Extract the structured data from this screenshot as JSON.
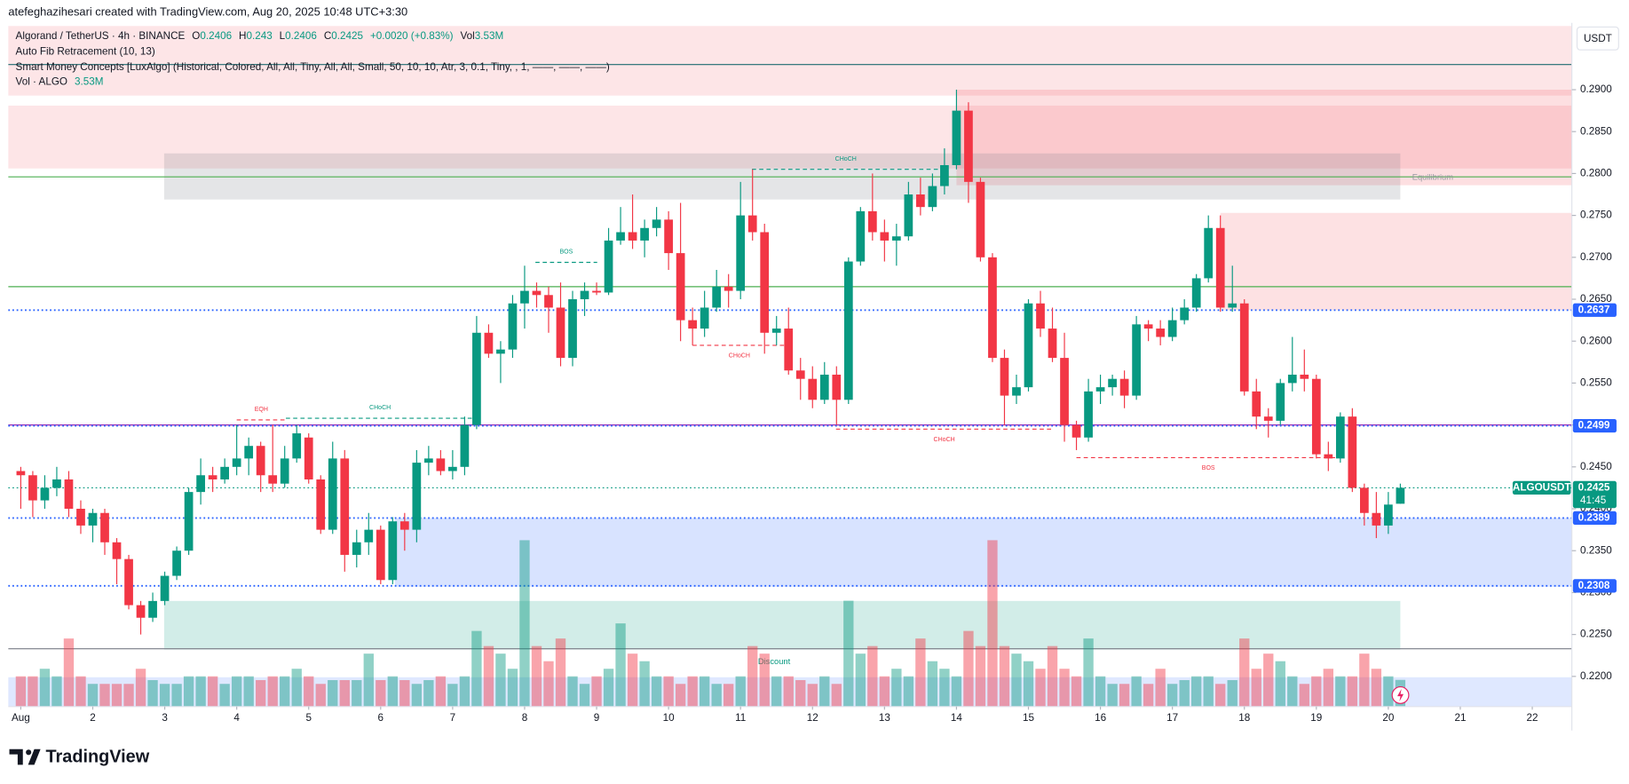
{
  "chart_data": {
    "type": "candlestick",
    "header": "atefeghazihesari created with TradingView.com, Aug 20, 2025 10:48 UTC+3:30",
    "title": "Algorand / TetherUS · 4h · BINANCE",
    "ohlc_keys": [
      "O",
      "H",
      "L",
      "C"
    ],
    "change": "+0.0020 (+0.83%)",
    "volume_key": "Vol",
    "indicators": [
      "Auto Fib Retracement (10, 13)",
      "Smart Money Concepts [LuxAlgo] (Historical, Colored, All, All, Tiny, All, All, Small, 50, 10, 10, Atr, 3, 0.1, Tiny, , 1, ——, ——, ——)"
    ],
    "volume_title": "Vol · ALGO",
    "volume_label": "3.53M",
    "currency": "USDT",
    "brand": "TradingView",
    "up_color": "#089981",
    "down_color": "#f23645",
    "open": [
      0.2445,
      0.244,
      0.241,
      0.2425,
      0.2435,
      0.24,
      0.238,
      0.2395,
      0.236,
      0.234,
      0.2285,
      0.227,
      0.229,
      0.232,
      0.235,
      0.242,
      0.244,
      0.2435,
      0.245,
      0.246,
      0.2475,
      0.244,
      0.243,
      0.246,
      0.2485,
      0.2435,
      0.2375,
      0.246,
      0.2345,
      0.236,
      0.2375,
      0.2315,
      0.2385,
      0.2375,
      0.2455,
      0.246,
      0.2445,
      0.245,
      0.25,
      0.261,
      0.2585,
      0.259,
      0.2645,
      0.266,
      0.2655,
      0.264,
      0.258,
      0.265,
      0.266,
      0.2658,
      0.272,
      0.273,
      0.272,
      0.2735,
      0.2745,
      0.2705,
      0.2625,
      0.2615,
      0.264,
      0.2665,
      0.266,
      0.275,
      0.273,
      0.261,
      0.2615,
      0.2565,
      0.2555,
      0.253,
      0.256,
      0.253,
      0.2695,
      0.2755,
      0.273,
      0.272,
      0.2725,
      0.2775,
      0.276,
      0.2785,
      0.281,
      0.2875,
      0.279,
      0.27,
      0.258,
      0.2535,
      0.2545,
      0.2645,
      0.2615,
      0.258,
      0.25,
      0.2485,
      0.254,
      0.2545,
      0.2555,
      0.2535,
      0.262,
      0.2615,
      0.2605,
      0.2625,
      0.264,
      0.2675,
      0.2735,
      0.264,
      0.2645,
      0.254,
      0.251,
      0.2505,
      0.255,
      0.256,
      0.2555,
      0.2465,
      0.246,
      0.251,
      0.2425,
      0.2395,
      0.238,
      0.2406
    ],
    "high": [
      0.245,
      0.2445,
      0.244,
      0.245,
      0.2445,
      0.241,
      0.24,
      0.24,
      0.2365,
      0.2345,
      0.229,
      0.23,
      0.2325,
      0.2355,
      0.2425,
      0.246,
      0.245,
      0.246,
      0.25,
      0.2485,
      0.248,
      0.25,
      0.2475,
      0.25,
      0.249,
      0.244,
      0.248,
      0.247,
      0.2375,
      0.2395,
      0.238,
      0.239,
      0.2395,
      0.247,
      0.2475,
      0.247,
      0.247,
      0.251,
      0.263,
      0.262,
      0.26,
      0.2655,
      0.269,
      0.267,
      0.2665,
      0.267,
      0.266,
      0.267,
      0.267,
      0.2735,
      0.276,
      0.2775,
      0.2745,
      0.276,
      0.2755,
      0.2765,
      0.264,
      0.266,
      0.2685,
      0.268,
      0.279,
      0.2805,
      0.274,
      0.263,
      0.264,
      0.258,
      0.257,
      0.2575,
      0.257,
      0.27,
      0.276,
      0.28,
      0.2745,
      0.274,
      0.279,
      0.2795,
      0.28,
      0.283,
      0.29,
      0.2885,
      0.2795,
      0.2705,
      0.259,
      0.256,
      0.265,
      0.266,
      0.264,
      0.261,
      0.2505,
      0.2555,
      0.256,
      0.256,
      0.2565,
      0.263,
      0.2625,
      0.2625,
      0.264,
      0.265,
      0.268,
      0.275,
      0.275,
      0.269,
      0.265,
      0.2555,
      0.252,
      0.2555,
      0.2605,
      0.259,
      0.256,
      0.248,
      0.2515,
      0.252,
      0.243,
      0.242,
      0.242,
      0.243
    ],
    "low": [
      0.24,
      0.239,
      0.24,
      0.2415,
      0.239,
      0.237,
      0.236,
      0.2345,
      0.231,
      0.228,
      0.225,
      0.2265,
      0.2285,
      0.2315,
      0.2345,
      0.2405,
      0.242,
      0.243,
      0.244,
      0.244,
      0.242,
      0.242,
      0.2425,
      0.2455,
      0.243,
      0.237,
      0.237,
      0.2325,
      0.233,
      0.2345,
      0.231,
      0.231,
      0.235,
      0.236,
      0.244,
      0.244,
      0.2435,
      0.244,
      0.2495,
      0.258,
      0.255,
      0.258,
      0.2615,
      0.264,
      0.261,
      0.257,
      0.257,
      0.263,
      0.2655,
      0.2655,
      0.2715,
      0.271,
      0.27,
      0.2725,
      0.2685,
      0.26,
      0.2595,
      0.2605,
      0.2635,
      0.264,
      0.265,
      0.272,
      0.2585,
      0.2595,
      0.256,
      0.253,
      0.252,
      0.2525,
      0.25,
      0.2525,
      0.269,
      0.272,
      0.2695,
      0.269,
      0.272,
      0.275,
      0.2755,
      0.2775,
      0.2805,
      0.2765,
      0.2695,
      0.2575,
      0.25,
      0.2525,
      0.254,
      0.2605,
      0.2575,
      0.248,
      0.247,
      0.248,
      0.2525,
      0.2535,
      0.252,
      0.253,
      0.26,
      0.2595,
      0.26,
      0.262,
      0.2635,
      0.267,
      0.2635,
      0.2635,
      0.2535,
      0.2495,
      0.2485,
      0.25,
      0.254,
      0.254,
      0.246,
      0.2445,
      0.2455,
      0.242,
      0.238,
      0.2365,
      0.237,
      0.2406
    ],
    "close": [
      0.244,
      0.241,
      0.2425,
      0.2435,
      0.24,
      0.238,
      0.2395,
      0.236,
      0.234,
      0.2285,
      0.227,
      0.229,
      0.232,
      0.235,
      0.242,
      0.244,
      0.2435,
      0.245,
      0.246,
      0.2475,
      0.244,
      0.243,
      0.246,
      0.249,
      0.2435,
      0.2375,
      0.246,
      0.2345,
      0.236,
      0.2375,
      0.2315,
      0.2385,
      0.2375,
      0.2455,
      0.246,
      0.2445,
      0.245,
      0.25,
      0.261,
      0.2585,
      0.259,
      0.2645,
      0.266,
      0.2655,
      0.264,
      0.258,
      0.265,
      0.266,
      0.2658,
      0.272,
      0.273,
      0.272,
      0.2735,
      0.2745,
      0.2705,
      0.2625,
      0.2615,
      0.264,
      0.2665,
      0.266,
      0.275,
      0.273,
      0.261,
      0.2615,
      0.2565,
      0.2555,
      0.253,
      0.256,
      0.253,
      0.2695,
      0.2755,
      0.273,
      0.272,
      0.2725,
      0.2775,
      0.276,
      0.2785,
      0.281,
      0.2875,
      0.279,
      0.27,
      0.258,
      0.2535,
      0.2545,
      0.2645,
      0.2615,
      0.258,
      0.25,
      0.2485,
      0.254,
      0.2545,
      0.2555,
      0.2535,
      0.262,
      0.2615,
      0.2605,
      0.2625,
      0.264,
      0.2675,
      0.2735,
      0.264,
      0.2645,
      0.254,
      0.251,
      0.2505,
      0.255,
      0.256,
      0.2555,
      0.2465,
      0.246,
      0.251,
      0.2425,
      0.2395,
      0.238,
      0.2405,
      0.2425
    ],
    "volume": [
      4,
      4,
      5,
      4,
      9,
      4,
      3,
      3,
      3,
      3,
      5,
      3.5,
      3,
      3,
      4,
      4,
      4,
      3,
      4,
      4,
      3.5,
      4,
      4,
      5,
      4,
      3,
      3.5,
      3.5,
      3.5,
      7,
      3.5,
      4,
      3.5,
      3,
      3.5,
      4,
      3,
      4,
      10,
      8,
      7,
      5,
      22,
      8,
      6,
      9,
      4,
      3,
      4,
      5,
      11,
      7,
      6,
      4,
      4,
      3,
      4,
      4,
      3,
      3,
      4,
      8,
      7,
      4,
      4,
      3.5,
      3,
      4,
      3,
      14,
      7,
      8,
      4,
      5,
      4,
      9,
      6,
      5,
      4,
      10,
      8,
      22,
      8,
      7,
      6,
      5,
      8,
      5,
      4,
      9,
      4,
      3,
      3,
      4,
      3,
      5,
      3,
      3.5,
      4,
      4,
      3,
      3.5,
      9,
      5,
      7,
      6,
      4,
      3,
      4,
      5,
      4,
      4,
      7,
      5,
      4,
      3.53
    ],
    "volume_ylim": [
      0,
      90
    ],
    "xlim": [
      -1.04,
      129.3
    ],
    "xticks": [
      {
        "value": 0,
        "label": "Aug"
      },
      {
        "value": 6,
        "label": "2"
      },
      {
        "value": 12,
        "label": "3"
      },
      {
        "value": 18,
        "label": "4"
      },
      {
        "value": 24,
        "label": "5"
      },
      {
        "value": 30,
        "label": "6"
      },
      {
        "value": 36,
        "label": "7"
      },
      {
        "value": 42,
        "label": "8"
      },
      {
        "value": 48,
        "label": "9"
      },
      {
        "value": 54,
        "label": "10"
      },
      {
        "value": 60,
        "label": "11"
      },
      {
        "value": 66,
        "label": "12"
      },
      {
        "value": 72,
        "label": "13"
      },
      {
        "value": 78,
        "label": "14"
      },
      {
        "value": 84,
        "label": "15"
      },
      {
        "value": 90,
        "label": "16"
      },
      {
        "value": 96,
        "label": "17"
      },
      {
        "value": 102,
        "label": "18"
      },
      {
        "value": 108,
        "label": "19"
      },
      {
        "value": 114,
        "label": "20"
      },
      {
        "value": 120,
        "label": "21"
      },
      {
        "value": 126,
        "label": "22"
      }
    ],
    "ylim": [
      0.2164,
      0.2976
    ],
    "yticks": [
      {
        "value": 0.29,
        "label": "0.2900"
      },
      {
        "value": 0.285,
        "label": "0.2850"
      },
      {
        "value": 0.28,
        "label": "0.2800"
      },
      {
        "value": 0.275,
        "label": "0.2750"
      },
      {
        "value": 0.27,
        "label": "0.2700"
      },
      {
        "value": 0.265,
        "label": "0.2650"
      },
      {
        "value": 0.26,
        "label": "0.2600"
      },
      {
        "value": 0.255,
        "label": "0.2550"
      },
      {
        "value": 0.25,
        "label": "0.2500"
      },
      {
        "value": 0.245,
        "label": "0.2450"
      },
      {
        "value": 0.24,
        "label": "0.2400"
      },
      {
        "value": 0.235,
        "label": "0.2350"
      },
      {
        "value": 0.23,
        "label": "0.2300"
      },
      {
        "value": 0.225,
        "label": "0.2250"
      },
      {
        "value": 0.22,
        "label": "0.2200"
      }
    ],
    "grid": false,
    "zones": [
      {
        "top": 0.2976,
        "bottom": 0.2893,
        "start": -1.04,
        "end": 129.3,
        "color": "rgba(242,54,69,0.13)"
      },
      {
        "top": 0.2881,
        "bottom": 0.2806,
        "start": -1.04,
        "end": 129.3,
        "color": "rgba(242,54,69,0.13)"
      },
      {
        "top": 0.29,
        "bottom": 0.2786,
        "start": 78,
        "end": 129.3,
        "color": "rgba(242,54,69,0.16)"
      },
      {
        "top": 0.2824,
        "bottom": 0.2769,
        "start": 11.95,
        "end": 115,
        "color": "rgba(120,123,134,0.2)"
      },
      {
        "top": 0.2753,
        "bottom": 0.2637,
        "start": 100,
        "end": 129.3,
        "color": "rgba(242,54,69,0.15)"
      },
      {
        "top": 0.2389,
        "bottom": 0.2307,
        "start": 31.2,
        "end": 129.3,
        "color": "rgba(41,98,255,0.18)"
      },
      {
        "top": 0.229,
        "bottom": 0.2232,
        "start": 11.95,
        "end": 115,
        "color": "rgba(8,153,129,0.18)"
      },
      {
        "top": 0.2199,
        "bottom": 0.2164,
        "start": -1.04,
        "end": 129.3,
        "color": "rgba(41,98,255,0.15)"
      }
    ],
    "levels": [
      {
        "value": 0.293,
        "color": "#1e6b70"
      },
      {
        "value": 0.2796,
        "color": "#4caf50"
      },
      {
        "value": 0.2665,
        "color": "#4caf50"
      },
      {
        "value": 0.25,
        "color": "#9c27b0"
      },
      {
        "value": 0.2233,
        "color": "#787b86"
      }
    ],
    "price_lines": [
      {
        "value": 0.2637,
        "color": "#2962ff"
      },
      {
        "value": 0.2499,
        "color": "#2962ff"
      },
      {
        "value": 0.2425,
        "color": "#089981",
        "tag": "ALGOUSDT",
        "countdown": "41:45"
      },
      {
        "value": 0.2389,
        "color": "#2962ff"
      },
      {
        "value": 0.2308,
        "color": "#2962ff"
      }
    ],
    "structures": [
      {
        "label": "EQH",
        "price": 0.2506,
        "from": 18.0,
        "to": 22.1,
        "color": "#f23645",
        "below": false
      },
      {
        "label": "CHoCH",
        "price": 0.2508,
        "from": 22.1,
        "to": 37.8,
        "color": "#089981",
        "below": false
      },
      {
        "label": "BOS",
        "price": 0.2694,
        "from": 42.9,
        "to": 48.05,
        "color": "#089981",
        "below": false
      },
      {
        "label": "CHoCH",
        "price": 0.2595,
        "from": 56.0,
        "to": 63.8,
        "color": "#f23645",
        "below": true
      },
      {
        "label": "CHoCH",
        "price": 0.2805,
        "from": 60.95,
        "to": 76.6,
        "color": "#089981",
        "below": false
      },
      {
        "label": "CHoCH",
        "price": 0.2495,
        "from": 67.96,
        "to": 86.0,
        "color": "#f23645",
        "below": true
      },
      {
        "label": "BOS",
        "price": 0.2461,
        "from": 88.0,
        "to": 110.0,
        "color": "#f23645",
        "below": true
      }
    ],
    "labels": [
      {
        "text": "Equilibrium",
        "x": 117.7,
        "price": 0.2795,
        "color": "#9598a1"
      },
      {
        "text": "Discount",
        "x": 62.8,
        "price": 0.2217,
        "color": "#089981"
      }
    ]
  }
}
